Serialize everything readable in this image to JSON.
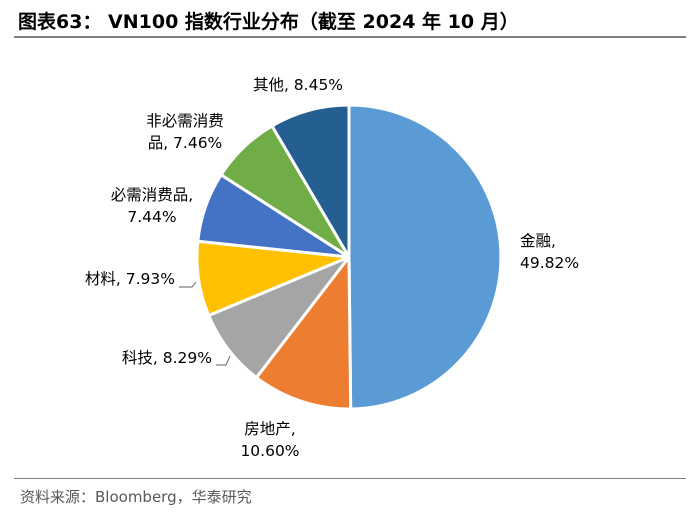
{
  "header": {
    "title": "图表63： VN100 指数行业分布（截至 2024 年 10 月）"
  },
  "footer": {
    "source": "资料来源：Bloomberg，华泰研究"
  },
  "chart_data": {
    "type": "pie",
    "title": "",
    "start_angle_deg": 0,
    "direction": "clockwise",
    "slices": [
      {
        "name": "金融",
        "value": 49.82,
        "label_lines": [
          "金融,",
          "49.82%"
        ],
        "color": "#5B9BD5"
      },
      {
        "name": "房地产",
        "value": 10.6,
        "label_lines": [
          "房地产,",
          "10.60%"
        ],
        "color": "#ED7D31"
      },
      {
        "name": "科技",
        "value": 8.29,
        "label_lines": [
          "科技, 8.29%"
        ],
        "color": "#A5A5A5"
      },
      {
        "name": "材料",
        "value": 7.93,
        "label_lines": [
          "材料, 7.93%"
        ],
        "color": "#FFC000"
      },
      {
        "name": "必需消费品",
        "value": 7.44,
        "label_lines": [
          "必需消费品,",
          "7.44%"
        ],
        "color": "#4472C4"
      },
      {
        "name": "非必需消费品",
        "value": 7.46,
        "label_lines": [
          "非必需消费",
          "品, 7.46%"
        ],
        "color": "#70AD47"
      },
      {
        "name": "其他",
        "value": 8.45,
        "label_lines": [
          "其他, 8.45%"
        ],
        "color": "#255E91"
      }
    ]
  }
}
